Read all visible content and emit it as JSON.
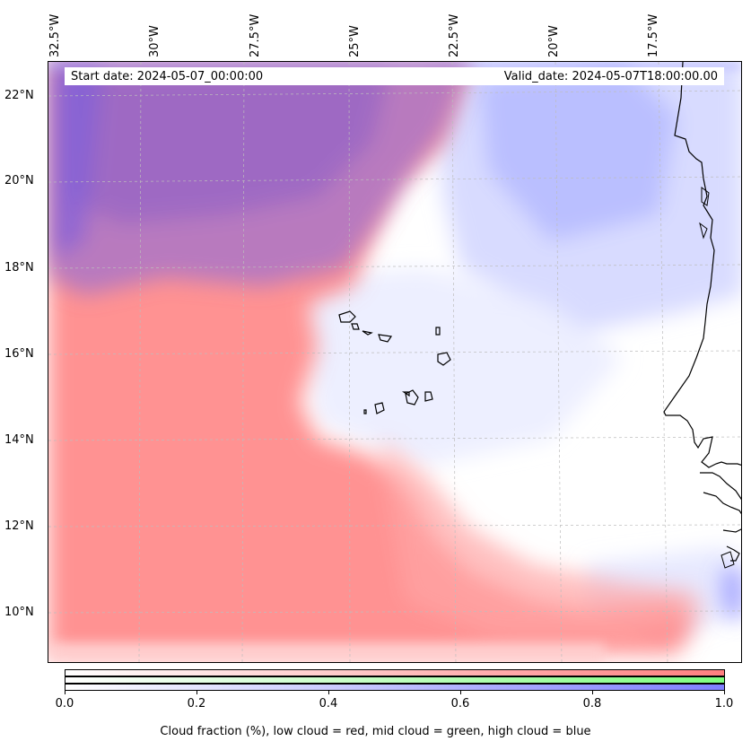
{
  "header": {
    "start_date": "Start date: 2024-05-07_00:00:00",
    "valid_date": "Valid_date: 2024-05-07T18:00:00.00"
  },
  "longitude_labels": [
    "32.5°W",
    "30°W",
    "27.5°W",
    "25°W",
    "22.5°W",
    "20°W",
    "17.5°W"
  ],
  "latitude_labels": [
    "22°N",
    "20°N",
    "18°N",
    "16°N",
    "14°N",
    "12°N",
    "10°N"
  ],
  "colorbar": {
    "ticks": [
      "0.0",
      "0.2",
      "0.4",
      "0.6",
      "0.8",
      "1.0"
    ],
    "caption": "Cloud fraction (%), low cloud = red, mid cloud = green, high cloud = blue",
    "colors": {
      "low": "#ff7f7f",
      "mid": "#7fff7f",
      "high": "#7f7fff"
    }
  }
}
